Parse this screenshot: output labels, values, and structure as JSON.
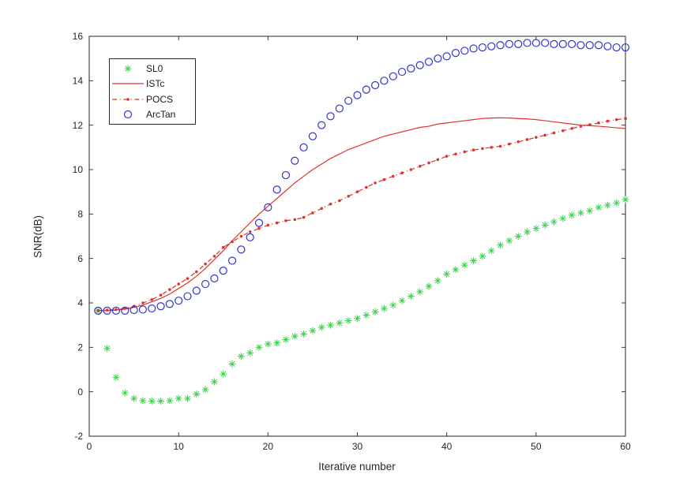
{
  "window": {
    "background": "#ffffff"
  },
  "chart_data": {
    "type": "line",
    "title": "",
    "xlabel": "Iterative number",
    "ylabel": "SNR(dB)",
    "xlim": [
      0,
      60
    ],
    "ylim": [
      -2,
      16
    ],
    "xticks": [
      0,
      10,
      20,
      30,
      40,
      50,
      60
    ],
    "yticks": [
      -2,
      0,
      2,
      4,
      6,
      8,
      10,
      12,
      14,
      16
    ],
    "grid": false,
    "axis_color": "#262626",
    "legend_position": "upper-left-inside",
    "x": [
      1,
      2,
      3,
      4,
      5,
      6,
      7,
      8,
      9,
      10,
      11,
      12,
      13,
      14,
      15,
      16,
      17,
      18,
      19,
      20,
      21,
      22,
      23,
      24,
      25,
      26,
      27,
      28,
      29,
      30,
      31,
      32,
      33,
      34,
      35,
      36,
      37,
      38,
      39,
      40,
      41,
      42,
      43,
      44,
      45,
      46,
      47,
      48,
      49,
      50,
      51,
      52,
      53,
      54,
      55,
      56,
      57,
      58,
      59,
      60
    ],
    "series": [
      {
        "name": "SL0",
        "color": "#3bd44c",
        "line": "none",
        "marker": "asterisk",
        "values": [
          3.65,
          1.95,
          0.65,
          -0.05,
          -0.3,
          -0.4,
          -0.42,
          -0.42,
          -0.4,
          -0.3,
          -0.3,
          -0.1,
          0.1,
          0.45,
          0.8,
          1.25,
          1.6,
          1.75,
          2.0,
          2.15,
          2.2,
          2.35,
          2.5,
          2.6,
          2.75,
          2.9,
          3.0,
          3.1,
          3.2,
          3.3,
          3.45,
          3.6,
          3.75,
          3.9,
          4.1,
          4.3,
          4.5,
          4.75,
          5.0,
          5.3,
          5.5,
          5.7,
          5.9,
          6.1,
          6.35,
          6.6,
          6.8,
          7.0,
          7.2,
          7.35,
          7.5,
          7.65,
          7.8,
          7.95,
          8.05,
          8.15,
          8.3,
          8.4,
          8.5,
          8.65
        ]
      },
      {
        "name": "ISTc",
        "color": "#dc342c",
        "line": "solid",
        "marker": "none",
        "values": [
          3.65,
          3.65,
          3.68,
          3.72,
          3.8,
          3.9,
          4.05,
          4.2,
          4.4,
          4.65,
          4.9,
          5.2,
          5.55,
          5.95,
          6.35,
          6.8,
          7.2,
          7.6,
          8.0,
          8.35,
          8.7,
          9.05,
          9.4,
          9.7,
          10.0,
          10.25,
          10.5,
          10.7,
          10.9,
          11.05,
          11.2,
          11.35,
          11.5,
          11.6,
          11.7,
          11.8,
          11.9,
          11.95,
          12.05,
          12.1,
          12.15,
          12.2,
          12.25,
          12.3,
          12.32,
          12.33,
          12.32,
          12.3,
          12.28,
          12.25,
          12.2,
          12.15,
          12.1,
          12.05,
          12.0,
          11.98,
          11.95,
          11.92,
          11.88,
          11.85
        ]
      },
      {
        "name": "POCS",
        "color": "#dc342c",
        "line": "dashdot",
        "marker": "dot",
        "values": [
          3.65,
          3.68,
          3.7,
          3.75,
          3.85,
          4.0,
          4.15,
          4.35,
          4.6,
          4.85,
          5.1,
          5.4,
          5.75,
          6.1,
          6.5,
          6.75,
          7.0,
          7.2,
          7.35,
          7.5,
          7.6,
          7.7,
          7.75,
          7.85,
          8.05,
          8.25,
          8.45,
          8.6,
          8.8,
          9.0,
          9.2,
          9.4,
          9.55,
          9.7,
          9.85,
          10.0,
          10.15,
          10.3,
          10.45,
          10.6,
          10.7,
          10.8,
          10.88,
          10.95,
          11.0,
          11.05,
          11.15,
          11.25,
          11.35,
          11.45,
          11.55,
          11.65,
          11.75,
          11.85,
          11.95,
          12.02,
          12.1,
          12.18,
          12.25,
          12.3
        ]
      },
      {
        "name": "ArcTan",
        "color": "#3232cf",
        "line": "none",
        "marker": "circle",
        "values": [
          3.65,
          3.65,
          3.65,
          3.65,
          3.68,
          3.7,
          3.75,
          3.85,
          3.95,
          4.1,
          4.3,
          4.55,
          4.85,
          5.1,
          5.45,
          5.9,
          6.4,
          6.95,
          7.6,
          8.3,
          9.1,
          9.75,
          10.4,
          11.0,
          11.5,
          12.0,
          12.4,
          12.75,
          13.1,
          13.35,
          13.6,
          13.8,
          14.0,
          14.2,
          14.4,
          14.55,
          14.7,
          14.85,
          15.0,
          15.1,
          15.25,
          15.35,
          15.45,
          15.5,
          15.55,
          15.6,
          15.65,
          15.65,
          15.7,
          15.7,
          15.7,
          15.65,
          15.65,
          15.65,
          15.6,
          15.6,
          15.6,
          15.55,
          15.5,
          15.5
        ]
      }
    ]
  }
}
